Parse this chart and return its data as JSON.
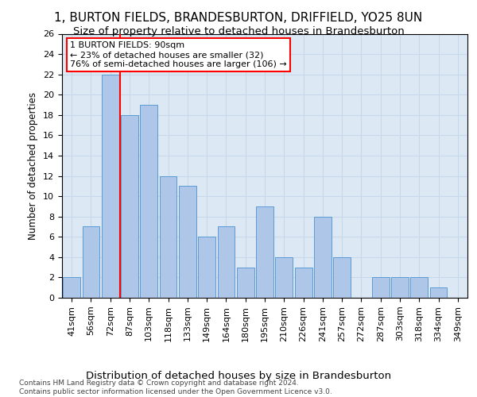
{
  "title": "1, BURTON FIELDS, BRANDESBURTON, DRIFFIELD, YO25 8UN",
  "subtitle": "Size of property relative to detached houses in Brandesburton",
  "xlabel": "Distribution of detached houses by size in Brandesburton",
  "ylabel": "Number of detached properties",
  "categories": [
    "41sqm",
    "56sqm",
    "72sqm",
    "87sqm",
    "103sqm",
    "118sqm",
    "133sqm",
    "149sqm",
    "164sqm",
    "180sqm",
    "195sqm",
    "210sqm",
    "226sqm",
    "241sqm",
    "257sqm",
    "272sqm",
    "287sqm",
    "303sqm",
    "318sqm",
    "334sqm",
    "349sqm"
  ],
  "values": [
    2,
    7,
    22,
    18,
    19,
    12,
    11,
    6,
    7,
    3,
    9,
    4,
    3,
    8,
    4,
    0,
    2,
    2,
    2,
    1,
    0
  ],
  "bar_color": "#aec6e8",
  "bar_edge_color": "#5b9bd5",
  "vline_x": 2.5,
  "annotation_text": "1 BURTON FIELDS: 90sqm\n← 23% of detached houses are smaller (32)\n76% of semi-detached houses are larger (106) →",
  "annotation_box_color": "white",
  "annotation_box_edge_color": "red",
  "vline_color": "red",
  "ylim": [
    0,
    26
  ],
  "yticks": [
    0,
    2,
    4,
    6,
    8,
    10,
    12,
    14,
    16,
    18,
    20,
    22,
    24,
    26
  ],
  "grid_color": "#c8d8ea",
  "background_color": "#dce9f5",
  "footer": "Contains HM Land Registry data © Crown copyright and database right 2024.\nContains public sector information licensed under the Open Government Licence v3.0.",
  "title_fontsize": 11,
  "subtitle_fontsize": 9.5,
  "xlabel_fontsize": 9.5,
  "ylabel_fontsize": 8.5,
  "annotation_fontsize": 8,
  "footer_fontsize": 6.5,
  "tick_fontsize": 8
}
